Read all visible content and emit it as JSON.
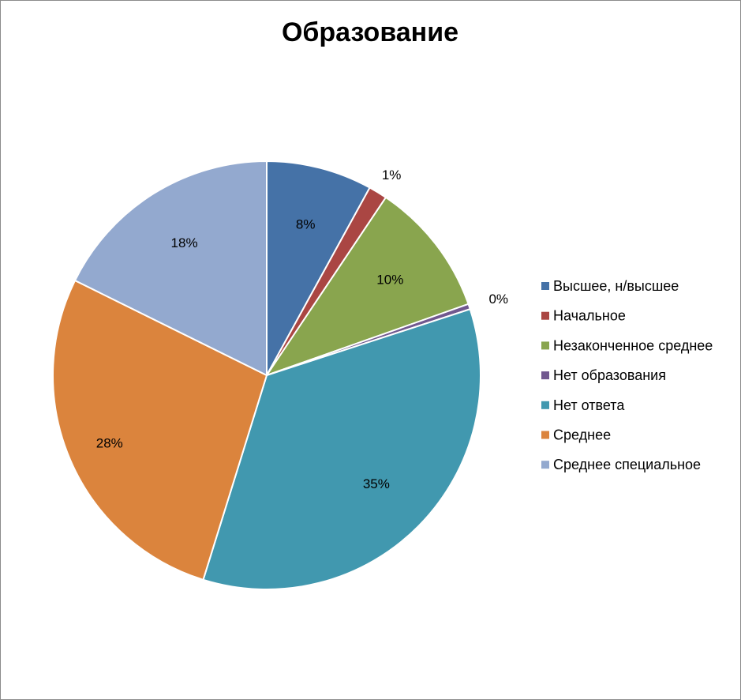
{
  "chart_data": {
    "type": "pie",
    "title": "Образование",
    "legend_position": "right",
    "series": [
      {
        "name": "Высшее, н/высшее",
        "value": 8.0,
        "label": "8%",
        "color": "#4572A7"
      },
      {
        "name": "Начальное",
        "value": 1.4,
        "label": "1%",
        "color": "#AA4643"
      },
      {
        "name": "Незаконченное среднее",
        "value": 10.2,
        "label": "10%",
        "color": "#89A54E"
      },
      {
        "name": "Нет образования",
        "value": 0.4,
        "label": "0%",
        "color": "#71588F"
      },
      {
        "name": "Нет ответа",
        "value": 34.8,
        "label": "35%",
        "color": "#4198AF"
      },
      {
        "name": "Среднее",
        "value": 27.5,
        "label": "28%",
        "color": "#DB843D"
      },
      {
        "name": "Среднее специальное",
        "value": 17.7,
        "label": "18%",
        "color": "#93A9CF"
      }
    ]
  }
}
